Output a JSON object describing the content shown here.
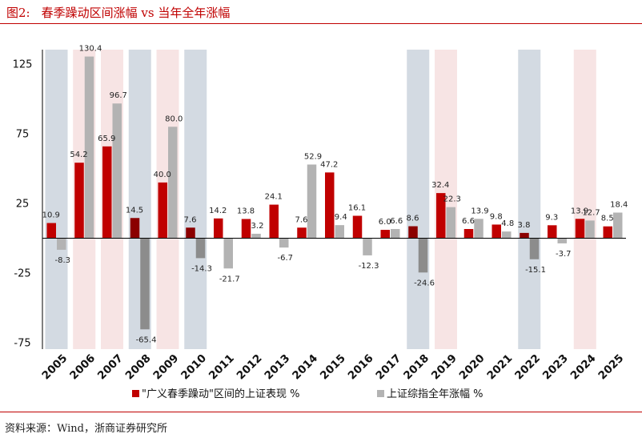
{
  "figure": {
    "title_prefix": "图2:",
    "title": "春季躁动区间涨幅 vs 当年全年涨幅",
    "source": "资料来源：Wind，浙商证券研究所"
  },
  "chart_data": {
    "type": "bar",
    "categories": [
      "2005",
      "2006",
      "2007",
      "2008",
      "2009",
      "2010",
      "2011",
      "2012",
      "2013",
      "2014",
      "2015",
      "2016",
      "2017",
      "2018",
      "2019",
      "2020",
      "2021",
      "2022",
      "2023",
      "2024",
      "2025"
    ],
    "series": [
      {
        "name": "\"广义春季躁动\"区间的上证表现 %",
        "color": "#c00000",
        "color_dark": "#8b0000",
        "values": [
          10.9,
          54.2,
          65.9,
          14.5,
          40.0,
          7.6,
          14.2,
          13.8,
          24.1,
          7.6,
          47.2,
          16.1,
          6.0,
          8.6,
          32.4,
          6.6,
          9.8,
          3.8,
          9.3,
          13.9,
          8.5
        ],
        "labels": [
          "10.9",
          "54.2",
          "65.9",
          "14.5",
          "40.0",
          "7.6",
          "14.2",
          "13.8",
          "24.1",
          "7.6",
          "47.2",
          "16.1",
          "6.0",
          "8.6",
          "32.4",
          "6.6",
          "9.8",
          "3.8",
          "9.3",
          "13.9",
          "8.5"
        ]
      },
      {
        "name": "上证综指全年涨幅 %",
        "color": "#b3b3b3",
        "color_dark": "#8c8c8c",
        "values": [
          -8.3,
          130.4,
          96.7,
          -65.4,
          80.0,
          -14.3,
          -21.7,
          3.2,
          -6.7,
          52.9,
          9.4,
          -12.3,
          6.6,
          -24.6,
          22.3,
          13.9,
          4.8,
          -15.1,
          -3.7,
          12.7,
          18.4
        ],
        "labels": [
          "-8.3",
          "130.4",
          "96.7",
          "-65.4",
          "80.0",
          "-14.3",
          "-21.7",
          "3.2",
          "-6.7",
          "52.9",
          "9.4",
          "-12.3",
          "6.6",
          "-24.6",
          "22.3",
          "13.9",
          "4.8",
          "-15.1",
          "-3.7",
          "12.7",
          "18.4"
        ]
      }
    ],
    "dark_years": [
      "2008",
      "2010",
      "2018",
      "2022"
    ],
    "highlight_bands": [
      {
        "year": "2005",
        "tone": "blue"
      },
      {
        "year": "2006",
        "tone": "pink"
      },
      {
        "year": "2007",
        "tone": "pink"
      },
      {
        "year": "2008",
        "tone": "blue"
      },
      {
        "year": "2009",
        "tone": "pink"
      },
      {
        "year": "2010",
        "tone": "blue"
      },
      {
        "year": "2018",
        "tone": "blue"
      },
      {
        "year": "2019",
        "tone": "pink"
      },
      {
        "year": "2022",
        "tone": "blue"
      },
      {
        "year": "2024",
        "tone": "pink"
      }
    ],
    "band_colors": {
      "blue": "#d3dae2",
      "pink": "#f7e4e4"
    },
    "ylim": [
      -75,
      125
    ],
    "yticks": [
      "125",
      "75",
      "25",
      "-25",
      "-75"
    ],
    "ytick_values": [
      125,
      75,
      25,
      -25,
      -75
    ],
    "xlabel": "",
    "ylabel": "",
    "grid": false,
    "legend_position": "bottom"
  }
}
